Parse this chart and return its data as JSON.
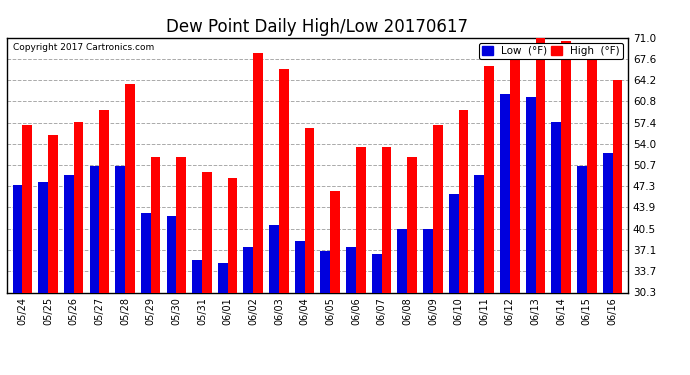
{
  "title": "Dew Point Daily High/Low 20170617",
  "copyright": "Copyright 2017 Cartronics.com",
  "categories": [
    "05/24",
    "05/25",
    "05/26",
    "05/27",
    "05/28",
    "05/29",
    "05/30",
    "05/31",
    "06/01",
    "06/02",
    "06/03",
    "06/04",
    "06/05",
    "06/06",
    "06/07",
    "06/08",
    "06/09",
    "06/10",
    "06/11",
    "06/12",
    "06/13",
    "06/14",
    "06/15",
    "06/16"
  ],
  "high_values": [
    57.0,
    55.5,
    57.5,
    59.5,
    63.5,
    52.0,
    52.0,
    49.5,
    48.5,
    68.5,
    66.0,
    56.5,
    46.5,
    53.5,
    53.5,
    52.0,
    57.0,
    59.5,
    66.5,
    69.5,
    71.0,
    70.5,
    68.0,
    64.2
  ],
  "low_values": [
    47.5,
    48.0,
    49.0,
    50.5,
    50.5,
    43.0,
    42.5,
    35.5,
    35.0,
    37.5,
    41.0,
    38.5,
    37.0,
    37.5,
    36.5,
    40.5,
    40.5,
    46.0,
    49.0,
    62.0,
    61.5,
    57.5,
    50.5,
    52.5
  ],
  "high_color": "#FF0000",
  "low_color": "#0000DD",
  "bg_color": "#FFFFFF",
  "plot_bg_color": "#FFFFFF",
  "grid_color": "#AAAAAA",
  "title_fontsize": 12,
  "yticks": [
    30.3,
    33.7,
    37.1,
    40.5,
    43.9,
    47.3,
    50.7,
    54.0,
    57.4,
    60.8,
    64.2,
    67.6,
    71.0
  ],
  "ymin": 30.3,
  "ymax": 71.0,
  "bar_width": 0.38,
  "border_color": "#000000"
}
